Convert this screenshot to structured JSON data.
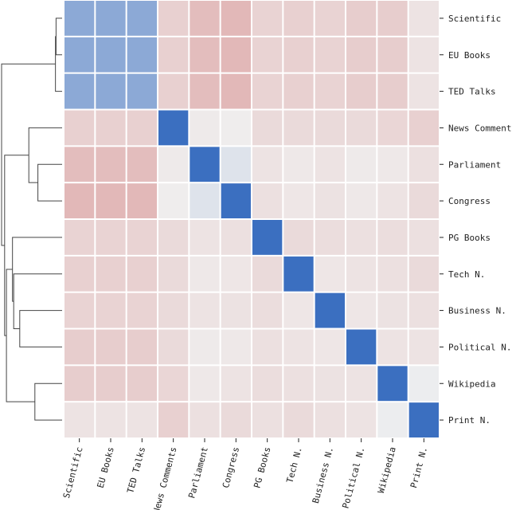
{
  "chart_data": {
    "type": "heatmap",
    "title": "",
    "row_labels": [
      "Scientific",
      "EU Books",
      "TED Talks",
      "News Comments",
      "Parliament",
      "Congress",
      "PG Books",
      "Tech N.",
      "Business N.",
      "Political N.",
      "Wikipedia",
      "Print N."
    ],
    "col_labels": [
      "Scientific",
      "EU Books",
      "TED Talks",
      "News Comments",
      "Parliament",
      "Congress",
      "PG Books",
      "Tech N.",
      "Business N.",
      "Political N.",
      "Wikipedia",
      "Print N."
    ],
    "value_range": [
      -1,
      1
    ],
    "colormap": {
      "low": "#3b6fc0",
      "mid": "#f0f0f0",
      "high": "#c85050"
    },
    "values": [
      [
        -0.55,
        -0.55,
        -0.55,
        0.2,
        0.32,
        0.35,
        0.18,
        0.2,
        0.18,
        0.22,
        0.22,
        0.08
      ],
      [
        -0.55,
        -0.55,
        -0.55,
        0.2,
        0.32,
        0.35,
        0.18,
        0.2,
        0.18,
        0.22,
        0.22,
        0.08
      ],
      [
        -0.55,
        -0.55,
        -0.55,
        0.2,
        0.32,
        0.35,
        0.18,
        0.2,
        0.18,
        0.22,
        0.22,
        0.08
      ],
      [
        0.2,
        0.2,
        0.2,
        -1.0,
        0.04,
        0.02,
        0.14,
        0.14,
        0.14,
        0.14,
        0.16,
        0.2
      ],
      [
        0.32,
        0.32,
        0.32,
        0.04,
        -1.0,
        -0.1,
        0.08,
        0.05,
        0.08,
        0.04,
        0.05,
        0.1
      ],
      [
        0.35,
        0.35,
        0.35,
        0.02,
        -0.1,
        -1.0,
        0.1,
        0.06,
        0.09,
        0.05,
        0.08,
        0.14
      ],
      [
        0.18,
        0.18,
        0.18,
        0.14,
        0.08,
        0.1,
        -1.0,
        0.14,
        0.12,
        0.1,
        0.12,
        0.1
      ],
      [
        0.2,
        0.2,
        0.2,
        0.14,
        0.05,
        0.06,
        0.14,
        -1.0,
        0.06,
        0.08,
        0.1,
        0.14
      ],
      [
        0.18,
        0.18,
        0.18,
        0.14,
        0.08,
        0.09,
        0.12,
        0.06,
        -1.0,
        0.06,
        0.09,
        0.1
      ],
      [
        0.22,
        0.22,
        0.22,
        0.14,
        0.04,
        0.05,
        0.1,
        0.08,
        0.06,
        -1.0,
        0.08,
        0.08
      ],
      [
        0.22,
        0.22,
        0.22,
        0.16,
        0.05,
        0.08,
        0.12,
        0.1,
        0.09,
        0.08,
        -1.0,
        -0.02
      ],
      [
        0.08,
        0.08,
        0.08,
        0.2,
        0.1,
        0.14,
        0.1,
        0.14,
        0.1,
        0.08,
        -0.02,
        -1.0
      ]
    ],
    "dendrogram": {
      "side": "left",
      "merges": [
        [
          0,
          1,
          0.1
        ],
        [
          12,
          2,
          0.11
        ],
        [
          4,
          5,
          0.4
        ],
        [
          3,
          14,
          0.55
        ],
        [
          8,
          9,
          0.7
        ],
        [
          7,
          16,
          0.8
        ],
        [
          6,
          17,
          0.82
        ],
        [
          10,
          11,
          0.45
        ],
        [
          18,
          19,
          0.92
        ],
        [
          15,
          20,
          0.95
        ],
        [
          13,
          21,
          1.0
        ]
      ]
    }
  }
}
